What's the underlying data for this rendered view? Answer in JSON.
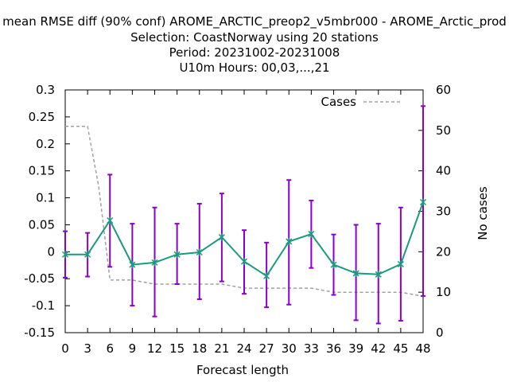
{
  "chart_data": {
    "type": "line",
    "title_lines": [
      "mean RMSE diff (90% conf) AROME_ARCTIC_preop2_v5mbr000 - AROME_Arctic_prod",
      "Selection: CoastNorway using    20 stations",
      "Period: 20231002-20231008",
      "U10m   Hours:  00,03,...,21"
    ],
    "xlabel": "Forecast length",
    "ylabel_right": "No cases",
    "x": [
      0,
      3,
      6,
      9,
      12,
      15,
      18,
      21,
      24,
      27,
      30,
      33,
      36,
      39,
      42,
      45,
      48
    ],
    "xlim": [
      0,
      48
    ],
    "ylim": [
      -0.15,
      0.3
    ],
    "y2lim": [
      0,
      60
    ],
    "yticks": [
      "0.3",
      "0.25",
      "0.2",
      "0.15",
      "0.1",
      "0.05",
      "0",
      "-0.05",
      "-0.1",
      "-0.15"
    ],
    "ytick_values": [
      0.3,
      0.25,
      0.2,
      0.15,
      0.1,
      0.05,
      0,
      -0.05,
      -0.1,
      -0.15
    ],
    "y2ticks": [
      "60",
      "50",
      "40",
      "30",
      "20",
      "10",
      "0"
    ],
    "y2tick_values": [
      60,
      50,
      40,
      30,
      20,
      10,
      0
    ],
    "xticks": [
      "0",
      "3",
      "6",
      "9",
      "12",
      "15",
      "18",
      "21",
      "24",
      "27",
      "30",
      "33",
      "36",
      "39",
      "42",
      "45",
      "48"
    ],
    "series": [
      {
        "values": [
          -0.005,
          -0.005,
          0.058,
          -0.024,
          -0.02,
          -0.005,
          -0.001,
          0.027,
          -0.018,
          -0.045,
          0.019,
          0.033,
          -0.024,
          -0.04,
          -0.042,
          -0.023,
          0.092
        ],
        "lower": [
          -0.048,
          -0.046,
          -0.028,
          -0.1,
          -0.12,
          -0.06,
          -0.088,
          -0.055,
          -0.078,
          -0.103,
          -0.098,
          -0.03,
          -0.08,
          -0.127,
          -0.133,
          -0.128,
          -0.082
        ],
        "upper": [
          0.038,
          0.035,
          0.143,
          0.052,
          0.082,
          0.052,
          0.089,
          0.108,
          0.04,
          0.017,
          0.133,
          0.095,
          0.032,
          0.05,
          0.052,
          0.082,
          0.27
        ],
        "color": "#1a9a7e",
        "errorbar_color": "#8b00c8"
      },
      {
        "name": "Cases",
        "axis": "y2",
        "style": "dashed",
        "color": "#a0a0a0",
        "x": [
          0,
          3,
          4.5,
          6,
          9,
          12,
          15,
          18,
          21,
          24,
          27,
          30,
          33,
          36,
          39,
          42,
          45,
          48
        ],
        "values": [
          51,
          51,
          36,
          13,
          13,
          12,
          12,
          12,
          12,
          11,
          11,
          11,
          11,
          10,
          10,
          10,
          10,
          9
        ]
      }
    ],
    "legend_position": "top-right",
    "grid": false
  }
}
